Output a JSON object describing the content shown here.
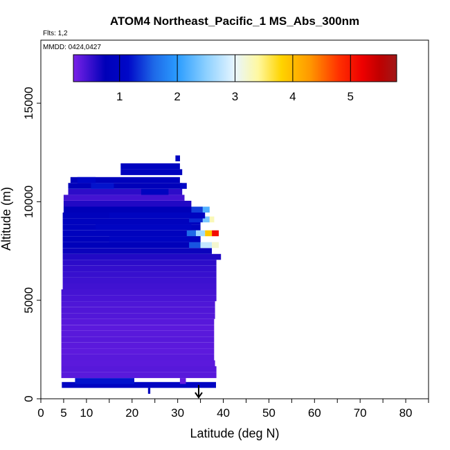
{
  "chart_data": {
    "type": "heatmap",
    "title": "ATOM4 Northeast_Pacific_1 MS_Abs_300nm",
    "flights_label": "Flts: 1,2",
    "dates_label": "MMDD: 0424,0427",
    "xlabel": "Latitude (deg N)",
    "ylabel": "Altitude (m)",
    "xlim": [
      0,
      85
    ],
    "ylim": [
      0,
      18200
    ],
    "xticks": [
      0,
      5,
      10,
      20,
      30,
      40,
      50,
      60,
      70,
      80
    ],
    "xtick_labels": [
      "0",
      "5",
      "10",
      "20",
      "30",
      "40",
      "50",
      "60",
      "70",
      "80"
    ],
    "xminor_ticks": [
      15,
      25,
      35,
      45,
      55,
      65,
      75,
      85
    ],
    "yticks": [
      0,
      5000,
      10000,
      15000
    ],
    "ytick_labels": [
      "0",
      "5000",
      "10000",
      "15000"
    ],
    "colorbar": {
      "range": [
        0.2,
        5.8
      ],
      "ticks": [
        1,
        2,
        3,
        4,
        5
      ],
      "tick_labels": [
        "1",
        "2",
        "3",
        "4",
        "5"
      ],
      "stops": [
        {
          "v": 0.2,
          "color": "#7a22e8"
        },
        {
          "v": 0.75,
          "color": "#0000b8"
        },
        {
          "v": 1.15,
          "color": "#0008c8"
        },
        {
          "v": 1.6,
          "color": "#1e6ae8"
        },
        {
          "v": 2.0,
          "color": "#2a9cff"
        },
        {
          "v": 2.5,
          "color": "#8cd0ff"
        },
        {
          "v": 3.0,
          "color": "#e8f6ff"
        },
        {
          "v": 3.4,
          "color": "#fff8a0"
        },
        {
          "v": 3.8,
          "color": "#ffd400"
        },
        {
          "v": 4.3,
          "color": "#ff9800"
        },
        {
          "v": 4.8,
          "color": "#ff3000"
        },
        {
          "v": 5.2,
          "color": "#ee0000"
        },
        {
          "v": 5.5,
          "color": "#c00000"
        },
        {
          "v": 5.8,
          "color": "#a01818"
        }
      ]
    },
    "marker": {
      "x": 34.6,
      "symbol": "arrow"
    },
    "cells": [
      [
        4.6,
        38.4,
        700,
        1.0
      ],
      [
        7.5,
        20.5,
        900,
        1.2
      ],
      [
        30.5,
        31.8,
        900,
        0.3
      ],
      [
        4.5,
        38.5,
        1200,
        0.35
      ],
      [
        4.5,
        38.5,
        1500,
        0.36
      ],
      [
        4.5,
        38.2,
        1800,
        0.34
      ],
      [
        4.5,
        38.0,
        2100,
        0.35
      ],
      [
        4.5,
        38.0,
        2400,
        0.33
      ],
      [
        4.5,
        38.0,
        2700,
        0.34
      ],
      [
        4.5,
        38.0,
        3000,
        0.36
      ],
      [
        4.5,
        38.0,
        3300,
        0.35
      ],
      [
        4.5,
        38.0,
        3600,
        0.34
      ],
      [
        4.5,
        38.0,
        3900,
        0.36
      ],
      [
        4.5,
        38.2,
        4200,
        0.38
      ],
      [
        4.5,
        38.2,
        4500,
        0.39
      ],
      [
        4.5,
        38.2,
        4800,
        0.4
      ],
      [
        4.5,
        38.5,
        5100,
        0.42
      ],
      [
        4.5,
        38.5,
        5400,
        0.44
      ],
      [
        4.8,
        38.5,
        5700,
        0.46
      ],
      [
        4.8,
        38.5,
        6000,
        0.48
      ],
      [
        4.8,
        38.5,
        6300,
        0.5
      ],
      [
        4.8,
        38.5,
        6600,
        0.52
      ],
      [
        4.8,
        38.5,
        6900,
        0.55
      ],
      [
        4.8,
        39.5,
        7200,
        0.6
      ],
      [
        4.8,
        37.5,
        7500,
        0.7
      ],
      [
        4.8,
        35.0,
        7800,
        0.8
      ],
      [
        4.8,
        35.0,
        8100,
        0.85
      ],
      [
        4.8,
        35.0,
        8400,
        0.9
      ],
      [
        4.8,
        35.0,
        8700,
        0.9
      ],
      [
        4.8,
        35.0,
        9000,
        0.9
      ],
      [
        4.8,
        35.0,
        9300,
        0.85
      ],
      [
        5.0,
        35.0,
        9600,
        0.75
      ],
      [
        5.0,
        33.0,
        9900,
        0.6
      ],
      [
        5.0,
        31.5,
        10200,
        0.45
      ],
      [
        6.0,
        31.0,
        10500,
        0.55
      ],
      [
        6.0,
        31.0,
        10800,
        0.8
      ],
      [
        6.5,
        30.5,
        11100,
        0.85
      ],
      [
        17.5,
        31.0,
        11500,
        0.9
      ],
      [
        17.5,
        30.5,
        11800,
        0.95
      ],
      [
        29.5,
        30.5,
        12200,
        1.0
      ],
      [
        30.5,
        32.0,
        10800,
        1.1
      ],
      [
        32.0,
        34.0,
        8400,
        1.6
      ],
      [
        34.0,
        36.0,
        8400,
        2.6
      ],
      [
        36.0,
        37.5,
        8400,
        3.9
      ],
      [
        37.5,
        39.0,
        8400,
        5.1
      ],
      [
        33.0,
        35.5,
        9600,
        1.4
      ],
      [
        35.5,
        37.0,
        9600,
        2.2
      ],
      [
        32.5,
        35.5,
        9100,
        1.3
      ],
      [
        35.5,
        37.0,
        9100,
        2.4
      ],
      [
        37.0,
        38.0,
        9100,
        3.3
      ],
      [
        32.5,
        35.0,
        7800,
        1.5
      ],
      [
        35.0,
        37.5,
        7800,
        2.8
      ],
      [
        37.5,
        39.0,
        7800,
        3.2
      ],
      [
        15.0,
        35.0,
        8100,
        0.95
      ],
      [
        15.0,
        36.0,
        9300,
        0.95
      ],
      [
        12.0,
        33.0,
        8700,
        1.0
      ],
      [
        8.0,
        12.0,
        11100,
        1.1
      ],
      [
        11.0,
        16.0,
        10800,
        1.2
      ],
      [
        22.0,
        28.0,
        10500,
        0.95
      ],
      [
        23.5,
        24.0,
        400,
        0.9
      ]
    ]
  }
}
